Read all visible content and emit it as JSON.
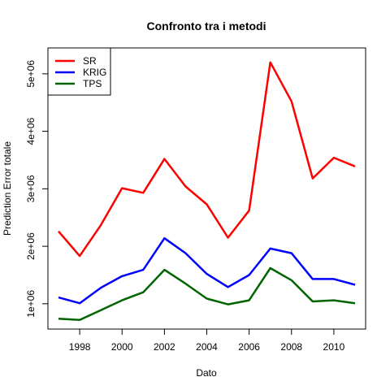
{
  "chart_data": {
    "type": "line",
    "title": "Confronto tra i metodi",
    "xlabel": "Dato",
    "ylabel": "Prediction Error totale",
    "x": [
      1997,
      1998,
      1999,
      2000,
      2001,
      2002,
      2003,
      2004,
      2005,
      2006,
      2007,
      2008,
      2009,
      2010,
      2011
    ],
    "xlim": [
      1996.5,
      2011.5
    ],
    "ylim": [
      560000,
      5450000
    ],
    "x_ticks": [
      1998,
      2000,
      2002,
      2004,
      2006,
      2008,
      2010
    ],
    "x_tick_labels": [
      "1998",
      "2000",
      "2002",
      "2004",
      "2006",
      "2008",
      "2010"
    ],
    "y_ticks": [
      1000000,
      2000000,
      3000000,
      4000000,
      5000000
    ],
    "y_tick_labels": [
      "1e+06",
      "2e+06",
      "3e+06",
      "4e+06",
      "5e+06"
    ],
    "grid": false,
    "legend_position": "top-left",
    "series": [
      {
        "name": "SR",
        "color": "#FF0000",
        "values": [
          2260000,
          1830000,
          2370000,
          3010000,
          2930000,
          3520000,
          3040000,
          2730000,
          2150000,
          2620000,
          5200000,
          4520000,
          3180000,
          3540000,
          3390000
        ]
      },
      {
        "name": "KRIG",
        "color": "#0000FF",
        "values": [
          1110000,
          1010000,
          1280000,
          1480000,
          1590000,
          2140000,
          1880000,
          1520000,
          1290000,
          1500000,
          1960000,
          1880000,
          1430000,
          1430000,
          1330000
        ]
      },
      {
        "name": "TPS",
        "color": "#006400",
        "values": [
          740000,
          720000,
          890000,
          1060000,
          1200000,
          1590000,
          1350000,
          1090000,
          990000,
          1060000,
          1620000,
          1410000,
          1040000,
          1060000,
          1010000
        ]
      }
    ]
  }
}
